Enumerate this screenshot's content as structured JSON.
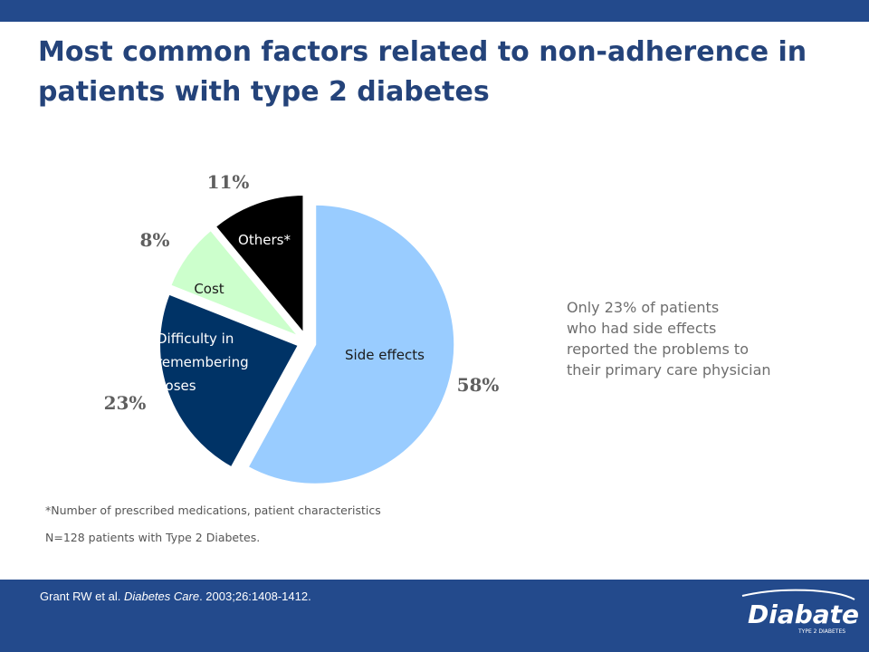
{
  "title": "Most common factors related to non-adherence in patients with type 2 diabetes",
  "chart_data": {
    "type": "pie",
    "slices": [
      {
        "category": "Side effects",
        "value": 58,
        "value_label": "58%",
        "color": "#99ccff"
      },
      {
        "category": "Difficulty in remembering doses",
        "label_lines": [
          "Difficulty in",
          "remembering",
          "doses"
        ],
        "value": 23,
        "value_label": "23%",
        "color": "#003366"
      },
      {
        "category": "Cost",
        "value": 8,
        "value_label": "8%",
        "color": "#ccffcc"
      },
      {
        "category": "Others*",
        "value": 11,
        "value_label": "11%",
        "color": "#000000"
      }
    ]
  },
  "note": {
    "lines": [
      "Only 23% of patients",
      "who had side effects",
      "reported the problems to",
      "their primary care physician"
    ]
  },
  "footnotes": {
    "asterisk": "*Number of prescribed medications, patient characteristics",
    "sample": "N=128 patients with Type 2 Diabetes."
  },
  "citation": {
    "authors": "Grant RW et al. ",
    "journal": "Diabetes Care",
    "details": ". 2003;26:1408-1412."
  },
  "logo": {
    "name": "Diabate",
    "tagline": "TYPE 2 DIABETES"
  }
}
